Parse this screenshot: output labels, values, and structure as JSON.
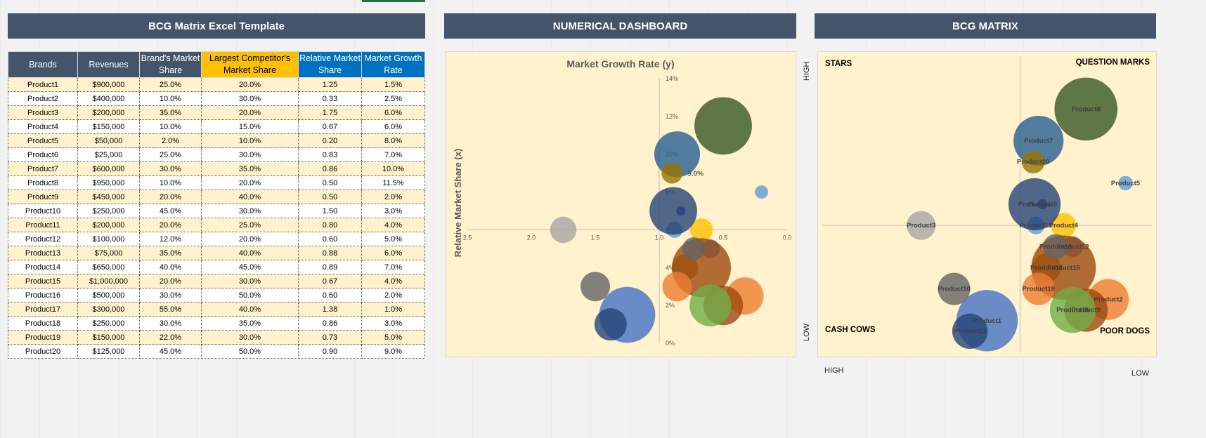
{
  "banners": {
    "left": "BCG Matrix Excel Template",
    "mid": "NUMERICAL DASHBOARD",
    "right": "BCG MATRIX"
  },
  "table": {
    "headers": [
      "Brands",
      "Revenues",
      "Brand's Market Share",
      "Largest Competitor's Market Share",
      "Relative Market Share",
      "Market Growth Rate"
    ],
    "rows": [
      [
        "Product1",
        "$900,000",
        "25.0%",
        "20.0%",
        "1.25",
        "1.5%"
      ],
      [
        "Product2",
        "$400,000",
        "10.0%",
        "30.0%",
        "0.33",
        "2.5%"
      ],
      [
        "Product3",
        "$200,000",
        "35.0%",
        "20.0%",
        "1.75",
        "6.0%"
      ],
      [
        "Product4",
        "$150,000",
        "10.0%",
        "15.0%",
        "0.67",
        "6.0%"
      ],
      [
        "Product5",
        "$50,000",
        "2.0%",
        "10.0%",
        "0.20",
        "8.0%"
      ],
      [
        "Product6",
        "$25,000",
        "25.0%",
        "30.0%",
        "0.83",
        "7.0%"
      ],
      [
        "Product7",
        "$600,000",
        "30.0%",
        "35.0%",
        "0.86",
        "10.0%"
      ],
      [
        "Product8",
        "$950,000",
        "10.0%",
        "20.0%",
        "0.50",
        "11.5%"
      ],
      [
        "Product9",
        "$450,000",
        "20.0%",
        "40.0%",
        "0.50",
        "2.0%"
      ],
      [
        "Product10",
        "$250,000",
        "45.0%",
        "30.0%",
        "1.50",
        "3.0%"
      ],
      [
        "Product11",
        "$200,000",
        "20.0%",
        "25.0%",
        "0.80",
        "4.0%"
      ],
      [
        "Product12",
        "$100,000",
        "12.0%",
        "20.0%",
        "0.60",
        "5.0%"
      ],
      [
        "Product13",
        "$75,000",
        "35.0%",
        "40.0%",
        "0.88",
        "6.0%"
      ],
      [
        "Product14",
        "$650,000",
        "40.0%",
        "45.0%",
        "0.89",
        "7.0%"
      ],
      [
        "Product15",
        "$1,000,000",
        "20.0%",
        "30.0%",
        "0.67",
        "4.0%"
      ],
      [
        "Product16",
        "$500,000",
        "30.0%",
        "50.0%",
        "0.60",
        "2.0%"
      ],
      [
        "Product17",
        "$300,000",
        "55.0%",
        "40.0%",
        "1.38",
        "1.0%"
      ],
      [
        "Product18",
        "$250,000",
        "30.0%",
        "35.0%",
        "0.86",
        "3.0%"
      ],
      [
        "Product19",
        "$150,000",
        "22.0%",
        "30.0%",
        "0.73",
        "5.0%"
      ],
      [
        "Product20",
        "$125,000",
        "45.0%",
        "50.0%",
        "0.90",
        "9.0%"
      ]
    ]
  },
  "palette": [
    "#4472c4",
    "#ed7d31",
    "#a5a5a5",
    "#ffc000",
    "#5b9bd5",
    "#264478",
    "#255e91",
    "#375623",
    "#9e480e",
    "#636363",
    "#997300",
    "#4472c4",
    "#5b9bd5",
    "#264478",
    "#9e480e",
    "#70ad47",
    "#264478",
    "#ed7d31",
    "#636363",
    "#997300"
  ],
  "chart_data": [
    {
      "type": "scatter",
      "title": "Market Growth Rate (y)",
      "xlabel": "Relative Market Share (x)",
      "ylabel": "",
      "x_ticks": [
        "2.5",
        "2.0",
        "1.5",
        "1.0",
        "0.5",
        "0.0"
      ],
      "y_ticks": [
        "0%",
        "2%",
        "4%",
        "6%",
        "8%",
        "10%",
        "12%",
        "14%"
      ],
      "xlim": [
        2.5,
        0.0
      ],
      "ylim": [
        0,
        14
      ],
      "x_reversed": true,
      "extra_label": "9.0%",
      "series": [
        {
          "name": "Product1",
          "x": 1.25,
          "y": 1.5,
          "size": 900000
        },
        {
          "name": "Product2",
          "x": 0.33,
          "y": 2.5,
          "size": 400000
        },
        {
          "name": "Product3",
          "x": 1.75,
          "y": 6.0,
          "size": 200000
        },
        {
          "name": "Product4",
          "x": 0.67,
          "y": 6.0,
          "size": 150000
        },
        {
          "name": "Product5",
          "x": 0.2,
          "y": 8.0,
          "size": 50000
        },
        {
          "name": "Product6",
          "x": 0.83,
          "y": 7.0,
          "size": 25000
        },
        {
          "name": "Product7",
          "x": 0.86,
          "y": 10.0,
          "size": 600000
        },
        {
          "name": "Product8",
          "x": 0.5,
          "y": 11.5,
          "size": 950000
        },
        {
          "name": "Product9",
          "x": 0.5,
          "y": 2.0,
          "size": 450000
        },
        {
          "name": "Product10",
          "x": 1.5,
          "y": 3.0,
          "size": 250000
        },
        {
          "name": "Product11",
          "x": 0.8,
          "y": 4.0,
          "size": 200000
        },
        {
          "name": "Product12",
          "x": 0.6,
          "y": 5.0,
          "size": 100000
        },
        {
          "name": "Product13",
          "x": 0.88,
          "y": 6.0,
          "size": 75000
        },
        {
          "name": "Product14",
          "x": 0.89,
          "y": 7.0,
          "size": 650000
        },
        {
          "name": "Product15",
          "x": 0.67,
          "y": 4.0,
          "size": 1000000
        },
        {
          "name": "Product16",
          "x": 0.6,
          "y": 2.0,
          "size": 500000
        },
        {
          "name": "Product17",
          "x": 1.38,
          "y": 1.0,
          "size": 300000
        },
        {
          "name": "Product18",
          "x": 0.86,
          "y": 3.0,
          "size": 250000
        },
        {
          "name": "Product19",
          "x": 0.73,
          "y": 5.0,
          "size": 150000
        },
        {
          "name": "Product20",
          "x": 0.9,
          "y": 9.0,
          "size": 125000
        }
      ]
    },
    {
      "type": "scatter",
      "title": "",
      "quadrants": {
        "top_left": "STARS",
        "top_right": "QUESTION MARKS",
        "bottom_left": "CASH COWS",
        "bottom_right": "POOR DOGS"
      },
      "xlim": [
        2.5,
        0.0
      ],
      "ylim": [
        0,
        14
      ],
      "x_reversed": true,
      "axis_labels": {
        "left_top": "HIGH",
        "left_bottom": "LOW",
        "bottom_left": "HIGH",
        "bottom_right": "LOW"
      },
      "series_ref": "same as dashboard series"
    }
  ]
}
